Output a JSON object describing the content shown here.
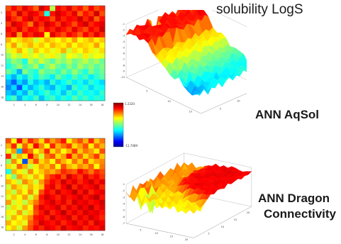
{
  "labels": {
    "title_top": "solubility LogS",
    "caption_aqsol": "ANN AqSol",
    "caption_dragon_line1": "ANN  Dragon",
    "caption_dragon_line2": "Connectivity"
  },
  "colorbar": {
    "max_label": "1.2320",
    "min_label": "-11.7089"
  },
  "chart_data": [
    {
      "type": "heatmap",
      "name": "heatmap-top",
      "grid_size": 18,
      "colormap": "jet",
      "x_ticks": [
        "2",
        "4",
        "6",
        "8",
        "10",
        "12",
        "14",
        "16",
        "18"
      ],
      "y_ticks": [
        "2",
        "4",
        "6",
        "8",
        "10",
        "12",
        "14",
        "16",
        "18"
      ],
      "description_rows": "values on 0-1 scale relative to colorbar (red=high, blue=low)",
      "values": [
        [
          0.8,
          0.88,
          0.82,
          0.9,
          0.85,
          0.78,
          0.92,
          0.86,
          0.55,
          0.88,
          0.84,
          0.9,
          0.82,
          0.86,
          0.78,
          0.88,
          0.8,
          0.84
        ],
        [
          0.86,
          0.8,
          0.92,
          0.84,
          0.9,
          0.88,
          0.82,
          0.4,
          0.86,
          0.92,
          0.88,
          0.84,
          0.9,
          0.78,
          0.86,
          0.82,
          0.92,
          0.8
        ],
        [
          0.9,
          0.84,
          0.8,
          0.88,
          0.92,
          0.84,
          0.88,
          0.86,
          0.8,
          0.9,
          0.84,
          0.88,
          0.86,
          0.92,
          0.84,
          0.9,
          0.78,
          0.86
        ],
        [
          0.82,
          0.92,
          0.88,
          0.84,
          0.76,
          0.9,
          0.84,
          0.92,
          0.88,
          0.82,
          0.9,
          0.86,
          0.8,
          0.88,
          0.92,
          0.84,
          0.88,
          0.9
        ],
        [
          0.88,
          0.84,
          0.9,
          0.82,
          0.88,
          0.86,
          0.8,
          0.88,
          0.84,
          0.9,
          0.86,
          0.82,
          0.9,
          0.84,
          0.8,
          0.88,
          0.84,
          0.92
        ],
        [
          0.84,
          0.9,
          0.72,
          0.88,
          0.84,
          0.9,
          0.88,
          0.62,
          0.9,
          0.84,
          0.8,
          0.88,
          0.84,
          0.78,
          0.88,
          0.82,
          0.9,
          0.84
        ],
        [
          0.7,
          0.62,
          0.66,
          0.7,
          0.68,
          0.58,
          0.64,
          0.7,
          0.66,
          0.62,
          0.68,
          0.64,
          0.72,
          0.62,
          0.66,
          0.7,
          0.64,
          0.68
        ],
        [
          0.64,
          0.72,
          0.6,
          0.66,
          0.7,
          0.64,
          0.68,
          0.62,
          0.7,
          0.66,
          0.64,
          0.7,
          0.62,
          0.68,
          0.66,
          0.64,
          0.72,
          0.62
        ],
        [
          0.58,
          0.64,
          0.7,
          0.62,
          0.56,
          0.68,
          0.62,
          0.66,
          0.6,
          0.64,
          0.7,
          0.58,
          0.66,
          0.62,
          0.68,
          0.64,
          0.6,
          0.66
        ],
        [
          0.52,
          0.6,
          0.56,
          0.64,
          0.58,
          0.62,
          0.56,
          0.6,
          0.64,
          0.58,
          0.52,
          0.62,
          0.6,
          0.56,
          0.64,
          0.58,
          0.62,
          0.6
        ],
        [
          0.44,
          0.52,
          0.48,
          0.4,
          0.56,
          0.5,
          0.58,
          0.52,
          0.46,
          0.54,
          0.5,
          0.56,
          0.48,
          0.52,
          0.56,
          0.5,
          0.54,
          0.48
        ],
        [
          0.4,
          0.46,
          0.52,
          0.44,
          0.48,
          0.54,
          0.42,
          0.5,
          0.56,
          0.48,
          0.44,
          0.52,
          0.46,
          0.54,
          0.48,
          0.52,
          0.46,
          0.5
        ],
        [
          0.48,
          0.42,
          0.3,
          0.5,
          0.44,
          0.4,
          0.52,
          0.46,
          0.48,
          0.42,
          0.5,
          0.44,
          0.52,
          0.46,
          0.4,
          0.5,
          0.44,
          0.48
        ],
        [
          0.36,
          0.3,
          0.4,
          0.34,
          0.44,
          0.38,
          0.46,
          0.42,
          0.36,
          0.48,
          0.42,
          0.38,
          0.46,
          0.4,
          0.44,
          0.36,
          0.42,
          0.46
        ],
        [
          0.3,
          0.22,
          0.34,
          0.28,
          0.4,
          0.32,
          0.36,
          0.3,
          0.42,
          0.34,
          0.38,
          0.44,
          0.36,
          0.4,
          0.34,
          0.42,
          0.38,
          0.34
        ],
        [
          0.26,
          0.34,
          0.2,
          0.38,
          0.3,
          0.36,
          0.42,
          0.34,
          0.3,
          0.4,
          0.36,
          0.3,
          0.44,
          0.38,
          0.42,
          0.34,
          0.4,
          0.38
        ],
        [
          0.32,
          0.28,
          0.36,
          0.3,
          0.42,
          0.34,
          0.38,
          0.44,
          0.36,
          0.4,
          0.32,
          0.42,
          0.36,
          0.44,
          0.38,
          0.4,
          0.36,
          0.42
        ],
        [
          0.38,
          0.44,
          0.3,
          0.4,
          0.36,
          0.44,
          0.32,
          0.4,
          0.44,
          0.36,
          0.42,
          0.38,
          0.46,
          0.4,
          0.44,
          0.38,
          0.42,
          0.4
        ]
      ]
    },
    {
      "type": "heatmap",
      "name": "heatmap-bottom",
      "grid_size": 18,
      "colormap": "jet",
      "x_ticks": [
        "2",
        "4",
        "6",
        "8",
        "10",
        "12",
        "14",
        "16",
        "18"
      ],
      "y_ticks": [
        "2",
        "4",
        "6",
        "8",
        "10",
        "12",
        "14",
        "16",
        "18"
      ],
      "description_rows": "values on 0-1 scale relative to colorbar (red=high, blue=low)",
      "values": [
        [
          0.8,
          0.62,
          0.88,
          0.7,
          0.84,
          0.76,
          0.66,
          0.82,
          0.72,
          0.78,
          0.86,
          0.64,
          0.74,
          0.8,
          0.7,
          0.84,
          0.68,
          0.76
        ],
        [
          0.7,
          0.84,
          0.6,
          0.78,
          0.66,
          0.88,
          0.74,
          0.62,
          0.84,
          0.7,
          0.76,
          0.82,
          0.66,
          0.72,
          0.8,
          0.64,
          0.78,
          0.7
        ],
        [
          0.6,
          0.72,
          0.3,
          0.82,
          0.76,
          0.62,
          0.7,
          0.84,
          0.66,
          0.74,
          0.62,
          0.7,
          0.82,
          0.68,
          0.76,
          0.72,
          0.64,
          0.8
        ],
        [
          0.84,
          0.56,
          0.7,
          0.64,
          0.88,
          0.72,
          0.58,
          0.76,
          0.8,
          0.66,
          0.72,
          0.86,
          0.7,
          0.78,
          0.66,
          0.74,
          0.82,
          0.68
        ],
        [
          0.52,
          0.74,
          0.62,
          0.2,
          0.68,
          0.8,
          0.66,
          0.72,
          0.62,
          0.78,
          0.7,
          0.64,
          0.76,
          0.68,
          0.8,
          0.66,
          0.72,
          0.74
        ],
        [
          0.66,
          0.6,
          0.78,
          0.7,
          0.56,
          0.64,
          0.72,
          0.68,
          0.76,
          0.62,
          0.8,
          0.7,
          0.66,
          0.74,
          0.7,
          0.78,
          0.62,
          0.76
        ],
        [
          0.4,
          0.7,
          0.64,
          0.58,
          0.74,
          0.62,
          0.68,
          0.74,
          0.7,
          0.76,
          0.84,
          0.8,
          0.78,
          0.88,
          0.82,
          0.76,
          0.84,
          0.8
        ],
        [
          0.62,
          0.5,
          0.72,
          0.66,
          0.6,
          0.7,
          0.64,
          0.78,
          0.84,
          0.88,
          0.8,
          0.92,
          0.86,
          0.82,
          0.9,
          0.84,
          0.88,
          0.82
        ],
        [
          0.7,
          0.64,
          0.56,
          0.74,
          0.68,
          0.58,
          0.72,
          0.82,
          0.88,
          0.84,
          0.92,
          0.86,
          0.9,
          0.84,
          0.88,
          0.92,
          0.86,
          0.9
        ],
        [
          0.58,
          0.72,
          0.66,
          0.6,
          0.7,
          0.64,
          0.68,
          0.86,
          0.9,
          0.82,
          0.88,
          0.94,
          0.84,
          0.9,
          0.86,
          0.88,
          0.92,
          0.84
        ],
        [
          0.66,
          0.56,
          0.7,
          0.62,
          0.74,
          0.6,
          0.8,
          0.88,
          0.84,
          0.92,
          0.86,
          0.88,
          0.94,
          0.86,
          0.92,
          0.84,
          0.88,
          0.9
        ],
        [
          0.6,
          0.68,
          0.62,
          0.72,
          0.58,
          0.7,
          0.86,
          0.92,
          0.88,
          0.84,
          0.9,
          0.86,
          0.88,
          0.92,
          0.86,
          0.9,
          0.94,
          0.86
        ],
        [
          0.72,
          0.58,
          0.64,
          0.56,
          0.68,
          0.76,
          0.84,
          0.88,
          0.92,
          0.86,
          0.9,
          0.84,
          0.92,
          0.88,
          0.9,
          0.86,
          0.88,
          0.92
        ],
        [
          0.56,
          0.66,
          0.6,
          0.7,
          0.62,
          0.82,
          0.9,
          0.86,
          0.88,
          0.92,
          0.84,
          0.9,
          0.86,
          0.92,
          0.88,
          0.94,
          0.86,
          0.9
        ],
        [
          0.64,
          0.6,
          0.72,
          0.58,
          0.66,
          0.8,
          0.86,
          0.92,
          0.84,
          0.88,
          0.94,
          0.86,
          0.9,
          0.86,
          0.92,
          0.88,
          0.9,
          0.86
        ],
        [
          0.58,
          0.7,
          0.62,
          0.68,
          0.74,
          0.86,
          0.88,
          0.84,
          0.92,
          0.86,
          0.88,
          0.92,
          0.84,
          0.9,
          0.86,
          0.92,
          0.88,
          0.84
        ],
        [
          0.7,
          0.62,
          0.66,
          0.6,
          0.78,
          0.84,
          0.92,
          0.88,
          0.86,
          0.9,
          0.84,
          0.88,
          0.92,
          0.86,
          0.9,
          0.84,
          0.92,
          0.88
        ],
        [
          0.62,
          0.68,
          0.58,
          0.72,
          0.8,
          0.88,
          0.84,
          0.9,
          0.88,
          0.84,
          0.92,
          0.86,
          0.88,
          0.9,
          0.84,
          0.88,
          0.86,
          0.9
        ]
      ]
    },
    {
      "type": "surface",
      "name": "surface-top",
      "colormap": "jet",
      "z_ticks": [
        "-1",
        "-2",
        "-3",
        "-4",
        "-5",
        "-6",
        "-7",
        "-8",
        "-9",
        "-10"
      ],
      "x_ticks": [
        "5",
        "10",
        "15"
      ],
      "y_ticks": [
        "5",
        "10",
        "15"
      ],
      "source": "heatmap-top"
    },
    {
      "type": "surface",
      "name": "surface-bottom",
      "colormap": "jet",
      "z_ticks": [
        "-1",
        "-2",
        "-3",
        "-4",
        "-5",
        "-6",
        "-7"
      ],
      "x_ticks": [
        "5",
        "10",
        "15",
        "20"
      ],
      "y_ticks": [
        "5",
        "10",
        "15",
        "20"
      ],
      "source": "heatmap-bottom"
    }
  ]
}
